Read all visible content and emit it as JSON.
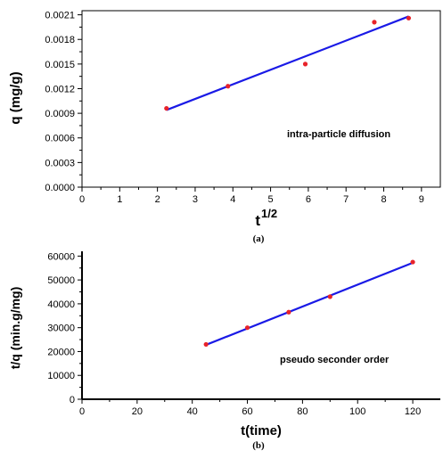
{
  "chart_data": [
    {
      "type": "scatter",
      "ylabel": "q (mg/g)",
      "xlabel_base": "t",
      "xlabel_sup": "1/2",
      "annotation": "intra-particle diffusion",
      "caption": "(a)",
      "xlim": [
        0,
        9.5
      ],
      "ylim": [
        0,
        0.00215
      ],
      "xticks": [
        "0",
        "1",
        "2",
        "3",
        "4",
        "5",
        "6",
        "7",
        "8",
        "9"
      ],
      "yticks": [
        "0.0000",
        "0.0003",
        "0.0006",
        "0.0009",
        "0.0012",
        "0.0015",
        "0.0018",
        "0.0021"
      ],
      "points": [
        {
          "x": 2.24,
          "y": 0.00096
        },
        {
          "x": 3.87,
          "y": 0.00123
        },
        {
          "x": 5.92,
          "y": 0.0015
        },
        {
          "x": 7.75,
          "y": 0.00201
        },
        {
          "x": 8.66,
          "y": 0.00206
        }
      ],
      "fit": {
        "x": [
          2.24,
          8.66
        ],
        "y": [
          0.00094,
          0.00208
        ]
      },
      "colors": {
        "points": "#e8232a",
        "fit": "#1a1ae6"
      }
    },
    {
      "type": "scatter",
      "ylabel": "t/q (min.g/mg)",
      "xlabel": "t(time)",
      "annotation": "pseudo seconder order",
      "caption": "(b)",
      "xlim": [
        0,
        130
      ],
      "ylim": [
        0,
        62000
      ],
      "xticks": [
        "0",
        "20",
        "40",
        "60",
        "80",
        "100",
        "120"
      ],
      "yticks": [
        "0",
        "10000",
        "20000",
        "30000",
        "40000",
        "50000",
        "60000"
      ],
      "points": [
        {
          "x": 45,
          "y": 23000
        },
        {
          "x": 60,
          "y": 30000
        },
        {
          "x": 75,
          "y": 36500
        },
        {
          "x": 90,
          "y": 43000
        },
        {
          "x": 120,
          "y": 57500
        }
      ],
      "fit": {
        "x": [
          45,
          120
        ],
        "y": [
          22800,
          57200
        ]
      },
      "colors": {
        "points": "#e8232a",
        "fit": "#1a1ae6"
      }
    }
  ]
}
